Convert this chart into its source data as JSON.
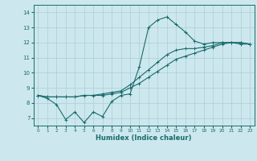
{
  "xlabel": "Humidex (Indice chaleur)",
  "xlim": [
    -0.5,
    23.5
  ],
  "ylim": [
    6.5,
    14.5
  ],
  "xticks": [
    0,
    1,
    2,
    3,
    4,
    5,
    6,
    7,
    8,
    9,
    10,
    11,
    12,
    13,
    14,
    15,
    16,
    17,
    18,
    19,
    20,
    21,
    22,
    23
  ],
  "yticks": [
    7,
    8,
    9,
    10,
    11,
    12,
    13,
    14
  ],
  "bg_color": "#cce8ee",
  "grid_color": "#aacdd5",
  "line_color": "#1a6b6b",
  "series1_x": [
    0,
    1,
    2,
    3,
    4,
    5,
    6,
    7,
    8,
    9,
    10,
    11,
    12,
    13,
    14,
    15,
    16,
    17,
    18,
    19,
    20,
    21,
    22,
    23
  ],
  "series1_y": [
    8.5,
    8.3,
    7.9,
    6.9,
    7.4,
    6.7,
    7.4,
    7.1,
    8.1,
    8.5,
    8.6,
    10.4,
    13.0,
    13.5,
    13.7,
    13.2,
    12.7,
    12.1,
    11.9,
    12.0,
    12.0,
    12.0,
    11.9,
    11.9
  ],
  "series2_x": [
    0,
    1,
    2,
    3,
    4,
    5,
    6,
    7,
    8,
    9,
    10,
    11,
    12,
    13,
    14,
    15,
    16,
    17,
    18,
    19,
    20,
    21,
    22,
    23
  ],
  "series2_y": [
    8.5,
    8.4,
    8.4,
    8.4,
    8.4,
    8.5,
    8.5,
    8.5,
    8.6,
    8.7,
    9.0,
    9.3,
    9.7,
    10.1,
    10.5,
    10.9,
    11.1,
    11.3,
    11.5,
    11.7,
    11.9,
    12.0,
    12.0,
    11.9
  ],
  "series3_x": [
    0,
    1,
    2,
    3,
    4,
    5,
    6,
    7,
    8,
    9,
    10,
    11,
    12,
    13,
    14,
    15,
    16,
    17,
    18,
    19,
    20,
    21,
    22,
    23
  ],
  "series3_y": [
    8.5,
    8.4,
    8.4,
    8.4,
    8.4,
    8.5,
    8.5,
    8.6,
    8.7,
    8.8,
    9.2,
    9.7,
    10.2,
    10.7,
    11.2,
    11.5,
    11.6,
    11.6,
    11.7,
    11.8,
    12.0,
    12.0,
    12.0,
    11.9
  ]
}
